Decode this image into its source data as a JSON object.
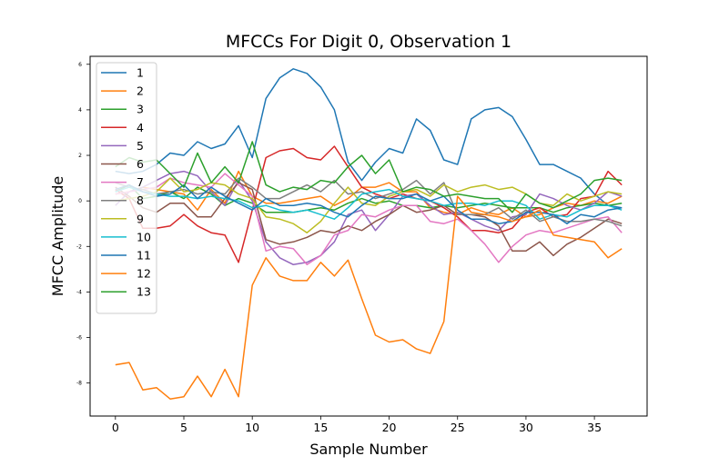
{
  "chart_data": {
    "type": "line",
    "title": "MFCCs For Digit 0, Observation 1",
    "xlabel": "Sample Number",
    "ylabel": "MFCC Amplitude",
    "xlim": [
      -1.85,
      38.85
    ],
    "ylim": [
      -9.45,
      6.35
    ],
    "xticks": [
      0,
      5,
      10,
      15,
      20,
      25,
      30,
      35
    ],
    "yticks": [
      -8,
      -6,
      -4,
      -2,
      0,
      2,
      4,
      6
    ],
    "grid": false,
    "legend_position": "top-left",
    "x": [
      0,
      1,
      2,
      3,
      4,
      5,
      6,
      7,
      8,
      9,
      10,
      11,
      12,
      13,
      14,
      15,
      16,
      17,
      18,
      19,
      20,
      21,
      22,
      23,
      24,
      25,
      26,
      27,
      28,
      29,
      30,
      31,
      32,
      33,
      34,
      35,
      36,
      37
    ],
    "series": [
      {
        "name": "1",
        "color": "#1f77b4",
        "values": [
          1.3,
          1.2,
          1.3,
          1.6,
          2.1,
          2.0,
          2.6,
          2.3,
          2.5,
          3.3,
          1.9,
          4.5,
          5.4,
          5.8,
          5.6,
          5.0,
          4.0,
          1.7,
          0.9,
          1.7,
          2.3,
          2.1,
          3.6,
          3.1,
          1.8,
          1.6,
          3.6,
          4.0,
          4.1,
          3.7,
          2.7,
          1.6,
          1.6,
          1.3,
          1.0,
          0.3,
          -0.2,
          -0.3
        ]
      },
      {
        "name": "2",
        "color": "#ff7f0e",
        "values": [
          0.3,
          0.4,
          0.6,
          0.5,
          0.4,
          0.3,
          -0.4,
          0.5,
          -0.1,
          1.3,
          0.2,
          -0.1,
          -0.1,
          0.0,
          0.1,
          0.2,
          -0.2,
          0.1,
          0.6,
          0.6,
          0.8,
          0.4,
          0.4,
          -0.3,
          -0.5,
          -0.6,
          -0.3,
          -0.5,
          -0.6,
          -0.3,
          -0.7,
          -0.6,
          -0.3,
          -0.1,
          -0.2,
          0.0,
          -0.1,
          0.2
        ]
      },
      {
        "name": "3",
        "color": "#2ca02c",
        "values": [
          0.4,
          0.7,
          0.1,
          0.2,
          0.4,
          0.1,
          0.6,
          0.3,
          -0.2,
          0.1,
          -0.1,
          -0.5,
          -0.5,
          -0.5,
          -0.4,
          -0.3,
          -0.4,
          -0.1,
          0.1,
          -0.1,
          0.0,
          -0.2,
          -0.2,
          -0.3,
          -0.2,
          -0.3,
          -0.2,
          -0.1,
          -0.2,
          -0.3,
          -0.3,
          -0.3,
          -0.5,
          -0.3,
          -0.2,
          -0.1,
          -0.2,
          -0.1
        ]
      },
      {
        "name": "4",
        "color": "#d62728",
        "values": [
          0.5,
          0.1,
          -1.2,
          -1.2,
          -1.1,
          -0.6,
          -1.1,
          -1.4,
          -1.5,
          -2.7,
          -0.4,
          1.9,
          2.2,
          2.3,
          1.9,
          1.8,
          2.4,
          1.5,
          0.6,
          0.3,
          0.1,
          0.3,
          0.1,
          0.0,
          -0.3,
          -0.7,
          -1.3,
          -1.3,
          -1.4,
          -1.2,
          -0.5,
          -0.3,
          -0.7,
          -0.6,
          0.1,
          0.2,
          1.3,
          0.7
        ]
      },
      {
        "name": "5",
        "color": "#9467bd",
        "values": [
          -0.2,
          0.4,
          0.6,
          0.9,
          1.2,
          1.3,
          1.1,
          0.4,
          -0.2,
          0.9,
          0.0,
          -1.8,
          -2.5,
          -2.8,
          -2.7,
          -2.4,
          -1.8,
          -0.6,
          -0.4,
          -1.3,
          -0.6,
          0.2,
          0.3,
          -0.2,
          -0.6,
          -0.5,
          -0.8,
          -1.1,
          -1.3,
          -0.7,
          -0.6,
          0.3,
          0.1,
          -0.2,
          -0.4,
          -0.1,
          0.4,
          0.2
        ]
      },
      {
        "name": "6",
        "color": "#8c564b",
        "values": [
          0.6,
          0.2,
          -0.3,
          -0.5,
          -0.1,
          -0.1,
          -0.7,
          -0.7,
          0.1,
          0.8,
          0.5,
          -1.7,
          -1.9,
          -1.8,
          -1.6,
          -1.3,
          -1.4,
          -1.1,
          -1.3,
          -0.9,
          -0.6,
          -0.2,
          -0.5,
          -0.4,
          -0.2,
          -0.6,
          -0.6,
          -0.7,
          -1.1,
          -2.2,
          -2.2,
          -1.8,
          -2.4,
          -1.9,
          -1.6,
          -1.2,
          -0.8,
          -1.0
        ]
      },
      {
        "name": "7",
        "color": "#e377c2",
        "values": [
          0.3,
          0.4,
          0.5,
          0.6,
          1.0,
          0.8,
          0.7,
          0.6,
          1.2,
          0.7,
          0.2,
          -2.2,
          -2.0,
          -2.1,
          -2.8,
          -2.4,
          -1.5,
          -1.3,
          -0.6,
          -0.7,
          -0.4,
          -0.2,
          -0.2,
          -0.9,
          -1.0,
          -0.8,
          -1.3,
          -1.9,
          -2.7,
          -2.0,
          -1.5,
          -1.3,
          -1.4,
          -1.2,
          -1.0,
          -0.8,
          -0.7,
          -1.4
        ]
      },
      {
        "name": "8",
        "color": "#7f7f7f",
        "values": [
          0.8,
          0.6,
          0.5,
          0.3,
          0.4,
          0.5,
          0.3,
          0.4,
          0.3,
          1.0,
          0.6,
          0.1,
          0.1,
          0.4,
          0.7,
          0.4,
          0.9,
          0.3,
          0.4,
          0.1,
          0.3,
          0.5,
          0.9,
          0.3,
          0.8,
          -0.6,
          -0.6,
          -0.6,
          -0.3,
          -0.8,
          -0.4,
          -0.9,
          -0.7,
          -0.9,
          -0.9,
          -0.8,
          -0.9,
          -1.1
        ]
      },
      {
        "name": "9",
        "color": "#bcbd22",
        "values": [
          0.0,
          0.1,
          0.2,
          0.4,
          1.0,
          0.4,
          0.5,
          0.8,
          0.7,
          0.3,
          0.1,
          -0.7,
          -0.8,
          -1.0,
          -1.4,
          -0.9,
          -0.1,
          0.6,
          -0.1,
          -0.2,
          0.2,
          0.4,
          0.5,
          0.2,
          0.7,
          0.4,
          0.6,
          0.7,
          0.5,
          0.6,
          0.3,
          -0.1,
          -0.2,
          0.3,
          0.0,
          0.2,
          0.4,
          0.3
        ]
      },
      {
        "name": "10",
        "color": "#17becf",
        "values": [
          0.4,
          0.6,
          0.4,
          0.3,
          0.2,
          0.2,
          0.1,
          0.2,
          0.1,
          0.0,
          -0.3,
          -0.2,
          -0.4,
          -0.5,
          -0.4,
          -0.6,
          -0.8,
          -0.3,
          0.3,
          0.4,
          0.5,
          0.2,
          0.1,
          0.0,
          -0.2,
          -0.1,
          -0.1,
          -0.2,
          0.0,
          0.0,
          -0.2,
          -0.8,
          -0.6,
          -0.7,
          -0.4,
          -0.2,
          -0.2,
          -0.4
        ]
      },
      {
        "name": "11",
        "color": "#1f77b4",
        "values": [
          0.5,
          0.7,
          0.4,
          0.2,
          0.3,
          0.7,
          0.1,
          0.6,
          0.2,
          -0.1,
          -0.4,
          0.1,
          -0.2,
          -0.2,
          -0.1,
          -0.2,
          -0.5,
          -0.7,
          -0.2,
          0.2,
          0.1,
          0.1,
          0.3,
          0.0,
          0.2,
          -0.4,
          -0.8,
          -0.8,
          -1.0,
          -0.9,
          -0.5,
          -0.5,
          -0.6,
          -1.0,
          -0.6,
          -0.7,
          -0.4,
          -0.3
        ]
      },
      {
        "name": "12",
        "color": "#ff7f0e",
        "values": [
          -7.2,
          -7.1,
          -8.3,
          -8.2,
          -8.7,
          -8.6,
          -7.7,
          -8.6,
          -7.4,
          -8.6,
          -3.7,
          -2.5,
          -3.3,
          -3.5,
          -3.5,
          -2.7,
          -3.3,
          -2.6,
          -4.3,
          -5.9,
          -6.2,
          -6.1,
          -6.5,
          -6.7,
          -5.3,
          0.2,
          -0.5,
          -0.6,
          -0.7,
          -0.9,
          -0.7,
          -0.4,
          -1.5,
          -1.6,
          -1.7,
          -1.8,
          -2.5,
          -2.1
        ]
      },
      {
        "name": "13",
        "color": "#2ca02c",
        "values": [
          1.5,
          1.9,
          1.7,
          1.8,
          1.2,
          0.6,
          2.1,
          0.8,
          1.5,
          0.8,
          2.6,
          0.7,
          0.4,
          0.6,
          0.5,
          0.9,
          0.8,
          1.5,
          2.0,
          1.2,
          1.8,
          0.4,
          0.6,
          0.5,
          0.2,
          0.3,
          0.2,
          0.1,
          0.1,
          -0.5,
          0.3,
          -0.1,
          -0.3,
          0.0,
          0.3,
          0.9,
          1.0,
          0.9
        ]
      }
    ]
  }
}
